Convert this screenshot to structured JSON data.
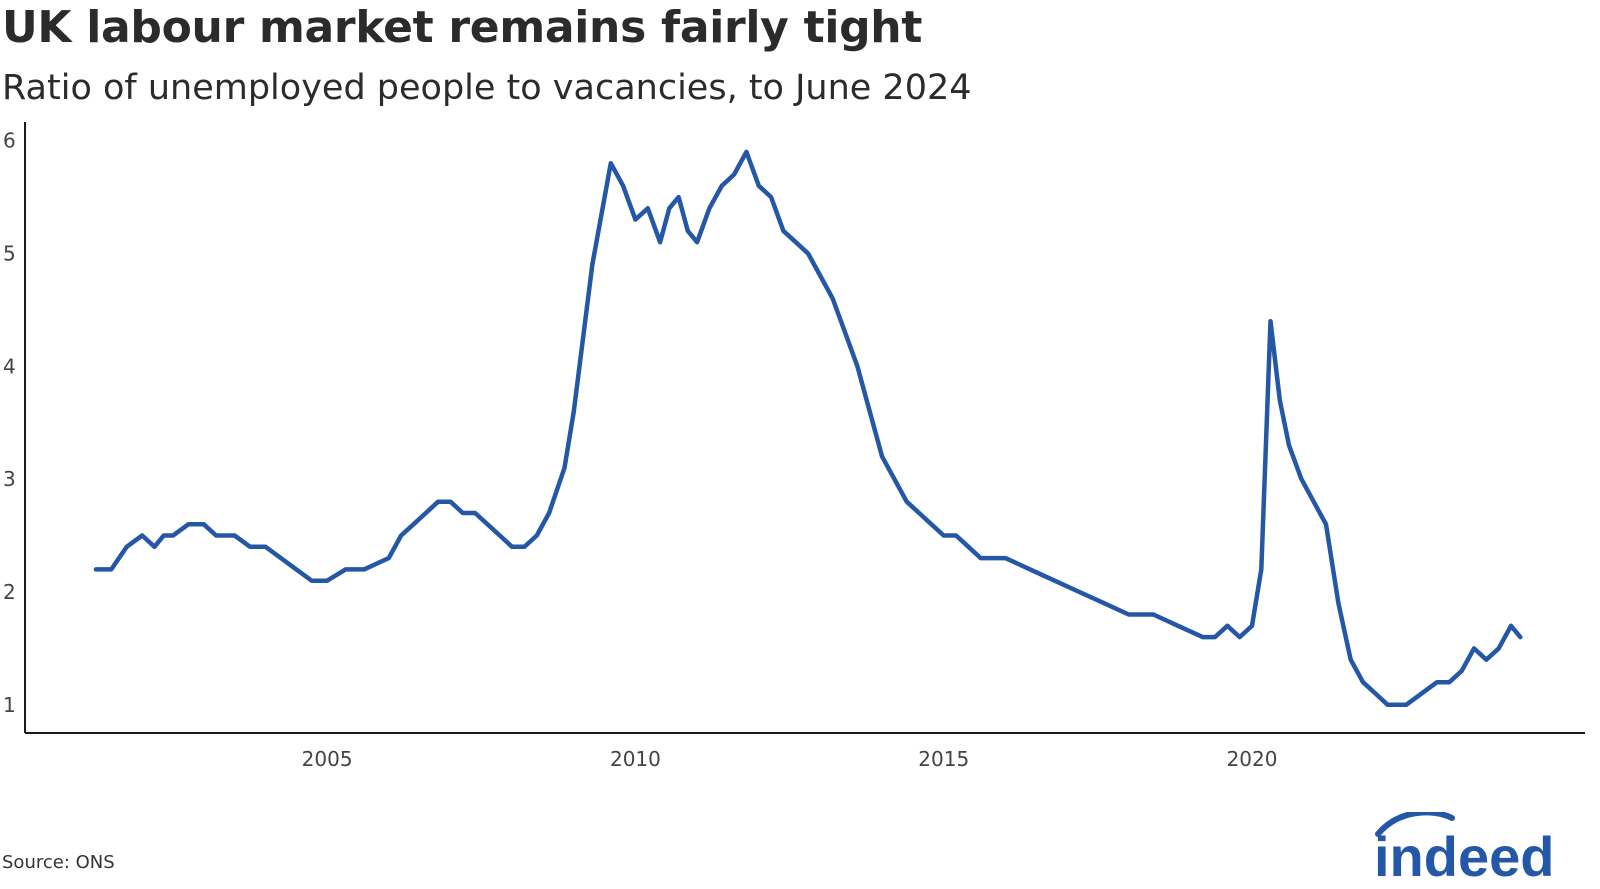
{
  "title": "UK labour market remains fairly tight",
  "subtitle": "Ratio of unemployed people to vacancies, to June 2024",
  "source": "Source: ONS",
  "logo_text": "indeed",
  "colors": {
    "line": "#2557a7",
    "axis": "#1a1a1a",
    "text": "#2b2b2b",
    "brand": "#2557a7"
  },
  "chart_data": {
    "type": "line",
    "title": "UK labour market remains fairly tight",
    "subtitle": "Ratio of unemployed people to vacancies, to June 2024",
    "xlabel": "",
    "ylabel": "",
    "xlim": [
      2000.1,
      2025.4
    ],
    "ylim": [
      0.75,
      6.05
    ],
    "x_ticks": [
      2005,
      2010,
      2015,
      2020
    ],
    "y_ticks": [
      1,
      2,
      3,
      4,
      5,
      6
    ],
    "grid": false,
    "legend": "none",
    "series": [
      {
        "x": [
          2001.25,
          2001.5,
          2001.75,
          2002.0,
          2002.2,
          2002.35,
          2002.5,
          2002.75,
          2003.0,
          2003.2,
          2003.5,
          2003.75,
          2004.0,
          2004.25,
          2004.5,
          2004.75,
          2005.0,
          2005.3,
          2005.6,
          2006.0,
          2006.2,
          2006.4,
          2006.6,
          2006.8,
          2007.0,
          2007.2,
          2007.4,
          2007.6,
          2007.8,
          2008.0,
          2008.2,
          2008.4,
          2008.6,
          2008.85,
          2009.0,
          2009.3,
          2009.6,
          2009.8,
          2010.0,
          2010.2,
          2010.4,
          2010.55,
          2010.7,
          2010.85,
          2011.0,
          2011.2,
          2011.4,
          2011.6,
          2011.8,
          2012.0,
          2012.2,
          2012.4,
          2012.6,
          2012.8,
          2013.0,
          2013.2,
          2013.4,
          2013.6,
          2013.8,
          2014.0,
          2014.2,
          2014.4,
          2014.6,
          2014.8,
          2015.0,
          2015.2,
          2015.4,
          2015.6,
          2015.8,
          2016.0,
          2016.4,
          2016.8,
          2017.2,
          2017.6,
          2018.0,
          2018.4,
          2018.8,
          2019.2,
          2019.4,
          2019.6,
          2019.8,
          2020.0,
          2020.15,
          2020.3,
          2020.45,
          2020.6,
          2020.8,
          2021.0,
          2021.2,
          2021.4,
          2021.6,
          2021.8,
          2022.0,
          2022.2,
          2022.5,
          2022.75,
          2023.0,
          2023.2,
          2023.4,
          2023.6,
          2023.8,
          2024.0,
          2024.2,
          2024.35
        ],
        "values": [
          2.2,
          2.2,
          2.4,
          2.5,
          2.4,
          2.5,
          2.5,
          2.6,
          2.6,
          2.5,
          2.5,
          2.4,
          2.4,
          2.3,
          2.2,
          2.1,
          2.1,
          2.2,
          2.2,
          2.3,
          2.5,
          2.6,
          2.7,
          2.8,
          2.8,
          2.7,
          2.7,
          2.6,
          2.5,
          2.4,
          2.4,
          2.5,
          2.7,
          3.1,
          3.6,
          4.9,
          5.8,
          5.6,
          5.3,
          5.4,
          5.1,
          5.4,
          5.5,
          5.2,
          5.1,
          5.4,
          5.6,
          5.7,
          5.9,
          5.6,
          5.5,
          5.2,
          5.1,
          5.0,
          4.8,
          4.6,
          4.3,
          4.0,
          3.6,
          3.2,
          3.0,
          2.8,
          2.7,
          2.6,
          2.5,
          2.5,
          2.4,
          2.3,
          2.3,
          2.3,
          2.2,
          2.1,
          2.0,
          1.9,
          1.8,
          1.8,
          1.7,
          1.6,
          1.6,
          1.7,
          1.6,
          1.7,
          2.2,
          4.4,
          3.7,
          3.3,
          3.0,
          2.8,
          2.6,
          1.9,
          1.4,
          1.2,
          1.1,
          1.0,
          1.0,
          1.1,
          1.2,
          1.2,
          1.3,
          1.5,
          1.4,
          1.5,
          1.7,
          1.6
        ]
      }
    ]
  }
}
